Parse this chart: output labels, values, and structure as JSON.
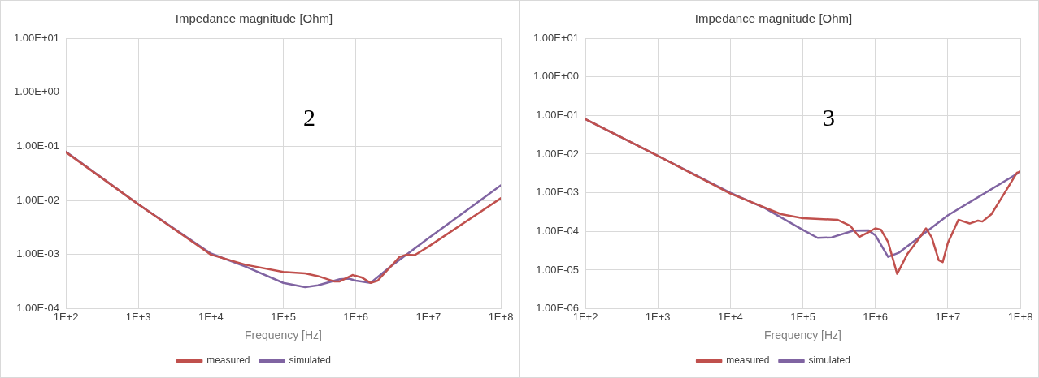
{
  "chart_data": [
    {
      "type": "line",
      "title": "Impedance magnitude [Ohm]",
      "xlabel": "Frequency [Hz]",
      "annotations": [
        "2"
      ],
      "log": "xy",
      "grid": true,
      "legend": "bottom",
      "marker": "none",
      "line_style": "solid",
      "xlim": [
        100,
        100000000
      ],
      "xticks": [
        {
          "value": 100,
          "label": "1E+2"
        },
        {
          "value": 1000,
          "label": "1E+3"
        },
        {
          "value": 10000,
          "label": "1E+4"
        },
        {
          "value": 100000,
          "label": "1E+5"
        },
        {
          "value": 1000000,
          "label": "1E+6"
        },
        {
          "value": 10000000,
          "label": "1E+7"
        },
        {
          "value": 100000000,
          "label": "1E+8"
        }
      ],
      "ylim": [
        0.0001,
        10
      ],
      "yticks": [
        {
          "value": 0.0001,
          "label": "1.00E-04"
        },
        {
          "value": 0.001,
          "label": "1.00E-03"
        },
        {
          "value": 0.01,
          "label": "1.00E-02"
        },
        {
          "value": 0.1,
          "label": "1.00E-01"
        },
        {
          "value": 1,
          "label": "1.00E+00"
        },
        {
          "value": 10,
          "label": "1.00E+01"
        }
      ],
      "series": [
        {
          "name": "measured",
          "color": "#c0504d",
          "x": [
            100,
            1000,
            10000,
            30000,
            100000,
            200000,
            300000,
            500000,
            600000,
            900000,
            1200000,
            1600000,
            2000000,
            4000000,
            5000000,
            6500000,
            10000000,
            100000000
          ],
          "values": [
            0.078,
            0.0085,
            0.001,
            0.00065,
            0.00048,
            0.00045,
            0.0004,
            0.00032,
            0.00032,
            0.00042,
            0.00038,
            0.0003,
            0.00033,
            0.0009,
            0.001,
            0.00098,
            0.0014,
            0.011
          ]
        },
        {
          "name": "simulated",
          "color": "#8064a2",
          "x": [
            100,
            1000,
            10000,
            30000,
            100000,
            200000,
            300000,
            600000,
            800000,
            1000000,
            1600000,
            3000000,
            10000000,
            100000000
          ],
          "values": [
            0.08,
            0.0085,
            0.00105,
            0.0006,
            0.0003,
            0.00025,
            0.00027,
            0.00035,
            0.00036,
            0.00033,
            0.0003,
            0.0006,
            0.002,
            0.019
          ]
        }
      ]
    },
    {
      "type": "line",
      "title": "Impedance magnitude [Ohm]",
      "xlabel": "Frequency [Hz]",
      "annotations": [
        "3"
      ],
      "log": "xy",
      "grid": true,
      "legend": "bottom",
      "marker": "none",
      "line_style": "solid",
      "xlim": [
        100,
        100000000
      ],
      "xticks": [
        {
          "value": 100,
          "label": "1E+2"
        },
        {
          "value": 1000,
          "label": "1E+3"
        },
        {
          "value": 10000,
          "label": "1E+4"
        },
        {
          "value": 100000,
          "label": "1E+5"
        },
        {
          "value": 1000000,
          "label": "1E+6"
        },
        {
          "value": 10000000,
          "label": "1E+7"
        },
        {
          "value": 100000000,
          "label": "1E+8"
        }
      ],
      "ylim": [
        1e-06,
        10
      ],
      "yticks": [
        {
          "value": 1e-06,
          "label": "1.00E-06"
        },
        {
          "value": 1e-05,
          "label": "1.00E-05"
        },
        {
          "value": 0.0001,
          "label": "1.00E-04"
        },
        {
          "value": 0.001,
          "label": "1.00E-03"
        },
        {
          "value": 0.01,
          "label": "1.00E-02"
        },
        {
          "value": 0.1,
          "label": "1.00E-01"
        },
        {
          "value": 1,
          "label": "1.00E+00"
        },
        {
          "value": 10,
          "label": "1.00E+01"
        }
      ],
      "series": [
        {
          "name": "measured",
          "color": "#c0504d",
          "x": [
            100,
            1000,
            10000,
            50000,
            100000,
            300000,
            450000,
            600000,
            800000,
            1000000,
            1200000,
            1500000,
            2000000,
            2800000,
            4000000,
            5000000,
            6000000,
            7500000,
            8500000,
            10000000,
            14000000,
            20000000,
            26000000,
            30000000,
            40000000,
            60000000,
            90000000,
            100000000
          ],
          "values": [
            0.08,
            0.009,
            0.00095,
            0.00028,
            0.00022,
            0.0002,
            0.00014,
            7.2e-05,
            9.5e-05,
            0.00012,
            0.00011,
            5.3e-05,
            8e-06,
            2.7e-05,
            6.5e-05,
            0.00012,
            7e-05,
            1.8e-05,
            1.6e-05,
            5e-05,
            0.0002,
            0.00016,
            0.00019,
            0.00018,
            0.00028,
            0.00095,
            0.0033,
            0.0035
          ]
        },
        {
          "name": "simulated",
          "color": "#8064a2",
          "x": [
            100,
            1000,
            10000,
            30000,
            100000,
            160000,
            250000,
            500000,
            800000,
            1000000,
            1500000,
            2100000,
            10000000,
            100000000
          ],
          "values": [
            0.08,
            0.009,
            0.001,
            0.0004,
            0.00011,
            6.8e-05,
            7e-05,
            0.000105,
            0.000107,
            8e-05,
            2.2e-05,
            2.8e-05,
            0.00026,
            0.0035
          ]
        }
      ]
    }
  ]
}
